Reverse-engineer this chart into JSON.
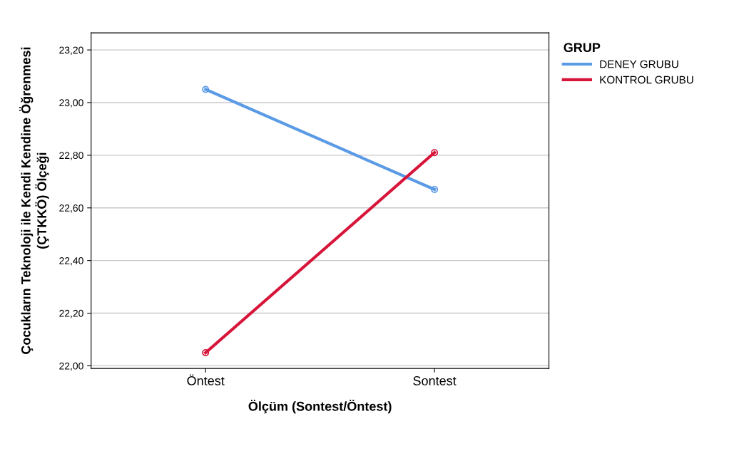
{
  "chart_data": {
    "type": "line",
    "xlabel": "Ölçüm (Sontest/Öntest)",
    "ylabel": "Çocukların Teknoloji ile Kendi Kendine Öğrenmesi\n(ÇTKKÖ) Ölçeği",
    "legend_title": "GRUP",
    "categories": [
      "Öntest",
      "Sontest"
    ],
    "series": [
      {
        "name": "DENEY GRUBU",
        "color": "#5b9be6",
        "values": [
          23.05,
          22.67
        ]
      },
      {
        "name": "KONTROL GRUBU",
        "color": "#d7153a",
        "values": [
          22.05,
          22.81
        ]
      }
    ],
    "ylim": [
      21.99,
      23.265
    ],
    "yticks": [
      {
        "value": 22.0,
        "label": "22,00"
      },
      {
        "value": 22.2,
        "label": "22,20"
      },
      {
        "value": 22.4,
        "label": "22,40"
      },
      {
        "value": 22.6,
        "label": "22,60"
      },
      {
        "value": 22.8,
        "label": "22,80"
      },
      {
        "value": 23.0,
        "label": "23,00"
      },
      {
        "value": 23.2,
        "label": "23,20"
      }
    ],
    "grid": "y",
    "legend": "right",
    "marker": "circle",
    "line_style": "solid"
  }
}
